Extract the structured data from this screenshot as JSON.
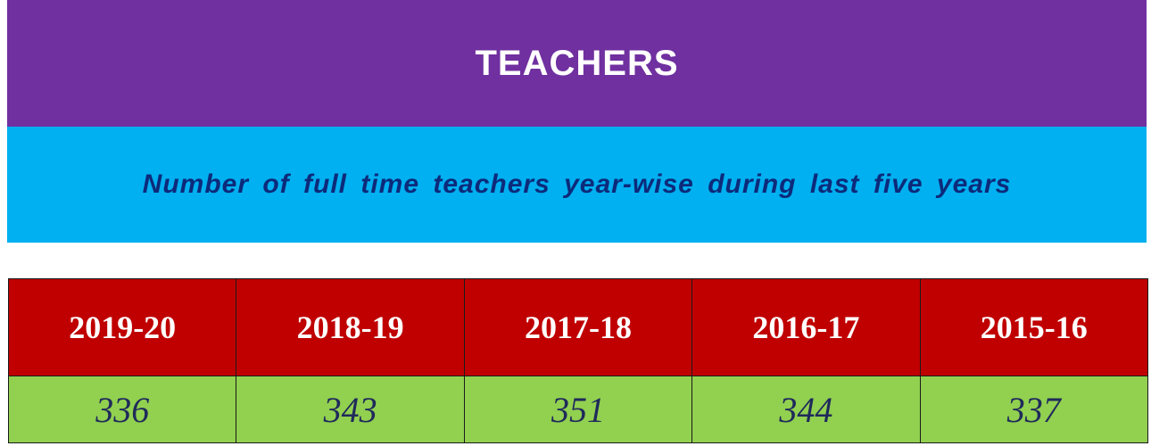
{
  "header": {
    "title": "TEACHERS",
    "subtitle": "Number of full time teachers year-wise during last five years"
  },
  "table": {
    "years": [
      "2019-20",
      "2018-19",
      "2017-18",
      "2016-17",
      "2015-16"
    ],
    "values": [
      "336",
      "343",
      "351",
      "344",
      "337"
    ]
  },
  "colors": {
    "title_bg": "#7030a0",
    "subtitle_bg": "#00b0f0",
    "year_row_bg": "#c00000",
    "value_row_bg": "#92d050"
  }
}
